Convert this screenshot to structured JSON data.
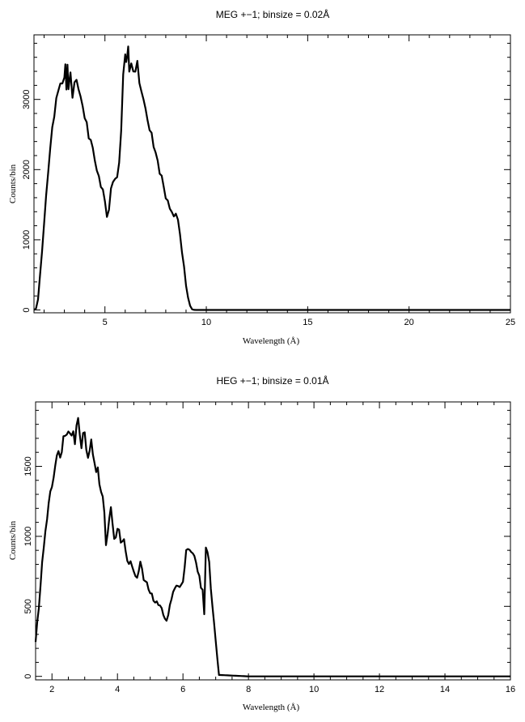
{
  "chart_data": [
    {
      "type": "line",
      "title": "MEG +−1; binsize = 0.02Å",
      "xlabel": "Wavelength (Å)",
      "ylabel": "Counts/bin",
      "xlim": [
        1.5,
        25
      ],
      "ylim": [
        -40,
        3920
      ],
      "x_ticks": [
        5,
        10,
        15,
        20,
        25
      ],
      "y_ticks": [
        0,
        1000,
        2000,
        3000
      ],
      "x_tick_labels": [
        "5",
        "10",
        "15",
        "20",
        "25"
      ],
      "y_tick_labels": [
        "0",
        "1000",
        "2000",
        "3000"
      ],
      "grid": false,
      "series": [
        {
          "x": [
            1.5,
            1.6,
            1.7,
            1.8,
            1.9,
            2.0,
            2.1,
            2.2,
            2.3,
            2.4,
            2.5,
            2.6,
            2.7,
            2.8,
            2.9,
            3.0,
            3.05,
            3.1,
            3.15,
            3.2,
            3.3,
            3.4,
            3.5,
            3.6,
            3.7,
            3.8,
            3.9,
            4.0,
            4.1,
            4.2,
            4.3,
            4.4,
            4.5,
            4.6,
            4.7,
            4.8,
            4.9,
            5.0,
            5.1,
            5.2,
            5.3,
            5.4,
            5.5,
            5.6,
            5.7,
            5.8,
            5.9,
            6.0,
            6.05,
            6.1,
            6.15,
            6.2,
            6.3,
            6.4,
            6.5,
            6.6,
            6.7,
            6.8,
            6.9,
            7.0,
            7.1,
            7.2,
            7.3,
            7.4,
            7.5,
            7.6,
            7.7,
            7.8,
            7.9,
            8.0,
            8.1,
            8.2,
            8.3,
            8.4,
            8.5,
            8.6,
            8.7,
            8.8,
            8.9,
            9.0,
            9.1,
            9.2,
            9.3,
            9.4,
            9.5,
            12.0,
            15.0,
            20.0,
            25.0
          ],
          "y": [
            0,
            20,
            150,
            500,
            850,
            1200,
            1600,
            1950,
            2300,
            2600,
            2850,
            3000,
            3100,
            3250,
            3150,
            3350,
            3520,
            3200,
            3380,
            3100,
            3300,
            2950,
            3350,
            3250,
            3050,
            3100,
            2850,
            2800,
            2600,
            2500,
            2450,
            2300,
            2150,
            2000,
            1900,
            1800,
            1700,
            1500,
            1350,
            1450,
            1700,
            1780,
            1850,
            1950,
            2100,
            2500,
            3300,
            3750,
            3550,
            3500,
            3650,
            3400,
            3550,
            3400,
            3500,
            3450,
            3280,
            3150,
            2980,
            2850,
            2700,
            2600,
            2450,
            2250,
            2300,
            2100,
            2000,
            1850,
            1750,
            1600,
            1550,
            1450,
            1400,
            1380,
            1350,
            1300,
            1100,
            800,
            600,
            350,
            180,
            60,
            10,
            2,
            0,
            0,
            0,
            0,
            0
          ]
        }
      ]
    },
    {
      "type": "line",
      "title": "HEG +−1; binsize = 0.01Å",
      "xlabel": "Wavelength (Å)",
      "ylabel": "Counts/bin",
      "xlim": [
        1.5,
        16
      ],
      "ylim": [
        -25,
        1960
      ],
      "x_ticks": [
        2,
        4,
        6,
        8,
        10,
        12,
        14,
        16
      ],
      "y_ticks": [
        0,
        500,
        1000,
        1500
      ],
      "x_tick_labels": [
        "2",
        "4",
        "6",
        "8",
        "10",
        "12",
        "14",
        "16"
      ],
      "y_tick_labels": [
        "0",
        "500",
        "1000",
        "1500"
      ],
      "grid": false,
      "series": [
        {
          "x": [
            1.5,
            1.6,
            1.7,
            1.8,
            1.9,
            2.0,
            2.1,
            2.2,
            2.3,
            2.4,
            2.5,
            2.6,
            2.7,
            2.8,
            2.9,
            3.0,
            3.1,
            3.2,
            3.3,
            3.4,
            3.5,
            3.6,
            3.65,
            3.7,
            3.8,
            3.85,
            3.9,
            4.0,
            4.1,
            4.2,
            4.3,
            4.4,
            4.5,
            4.6,
            4.7,
            4.8,
            4.9,
            5.0,
            5.1,
            5.2,
            5.3,
            5.4,
            5.5,
            5.6,
            5.7,
            5.8,
            5.9,
            6.0,
            6.1,
            6.2,
            6.3,
            6.4,
            6.5,
            6.6,
            6.65,
            6.7,
            6.8,
            6.9,
            7.0,
            7.1,
            8.0,
            10.0,
            12.0,
            14.0,
            16.0
          ],
          "y": [
            250,
            500,
            800,
            1050,
            1250,
            1400,
            1500,
            1580,
            1650,
            1720,
            1800,
            1780,
            1700,
            1820,
            1680,
            1750,
            1600,
            1650,
            1550,
            1450,
            1300,
            1200,
            950,
            1000,
            1220,
            1100,
            1000,
            1050,
            980,
            950,
            850,
            800,
            750,
            700,
            800,
            700,
            650,
            600,
            550,
            520,
            500,
            450,
            400,
            500,
            600,
            650,
            620,
            700,
            900,
            920,
            880,
            800,
            700,
            600,
            450,
            950,
            800,
            500,
            250,
            10,
            0,
            0,
            0,
            0,
            0
          ]
        }
      ]
    }
  ]
}
